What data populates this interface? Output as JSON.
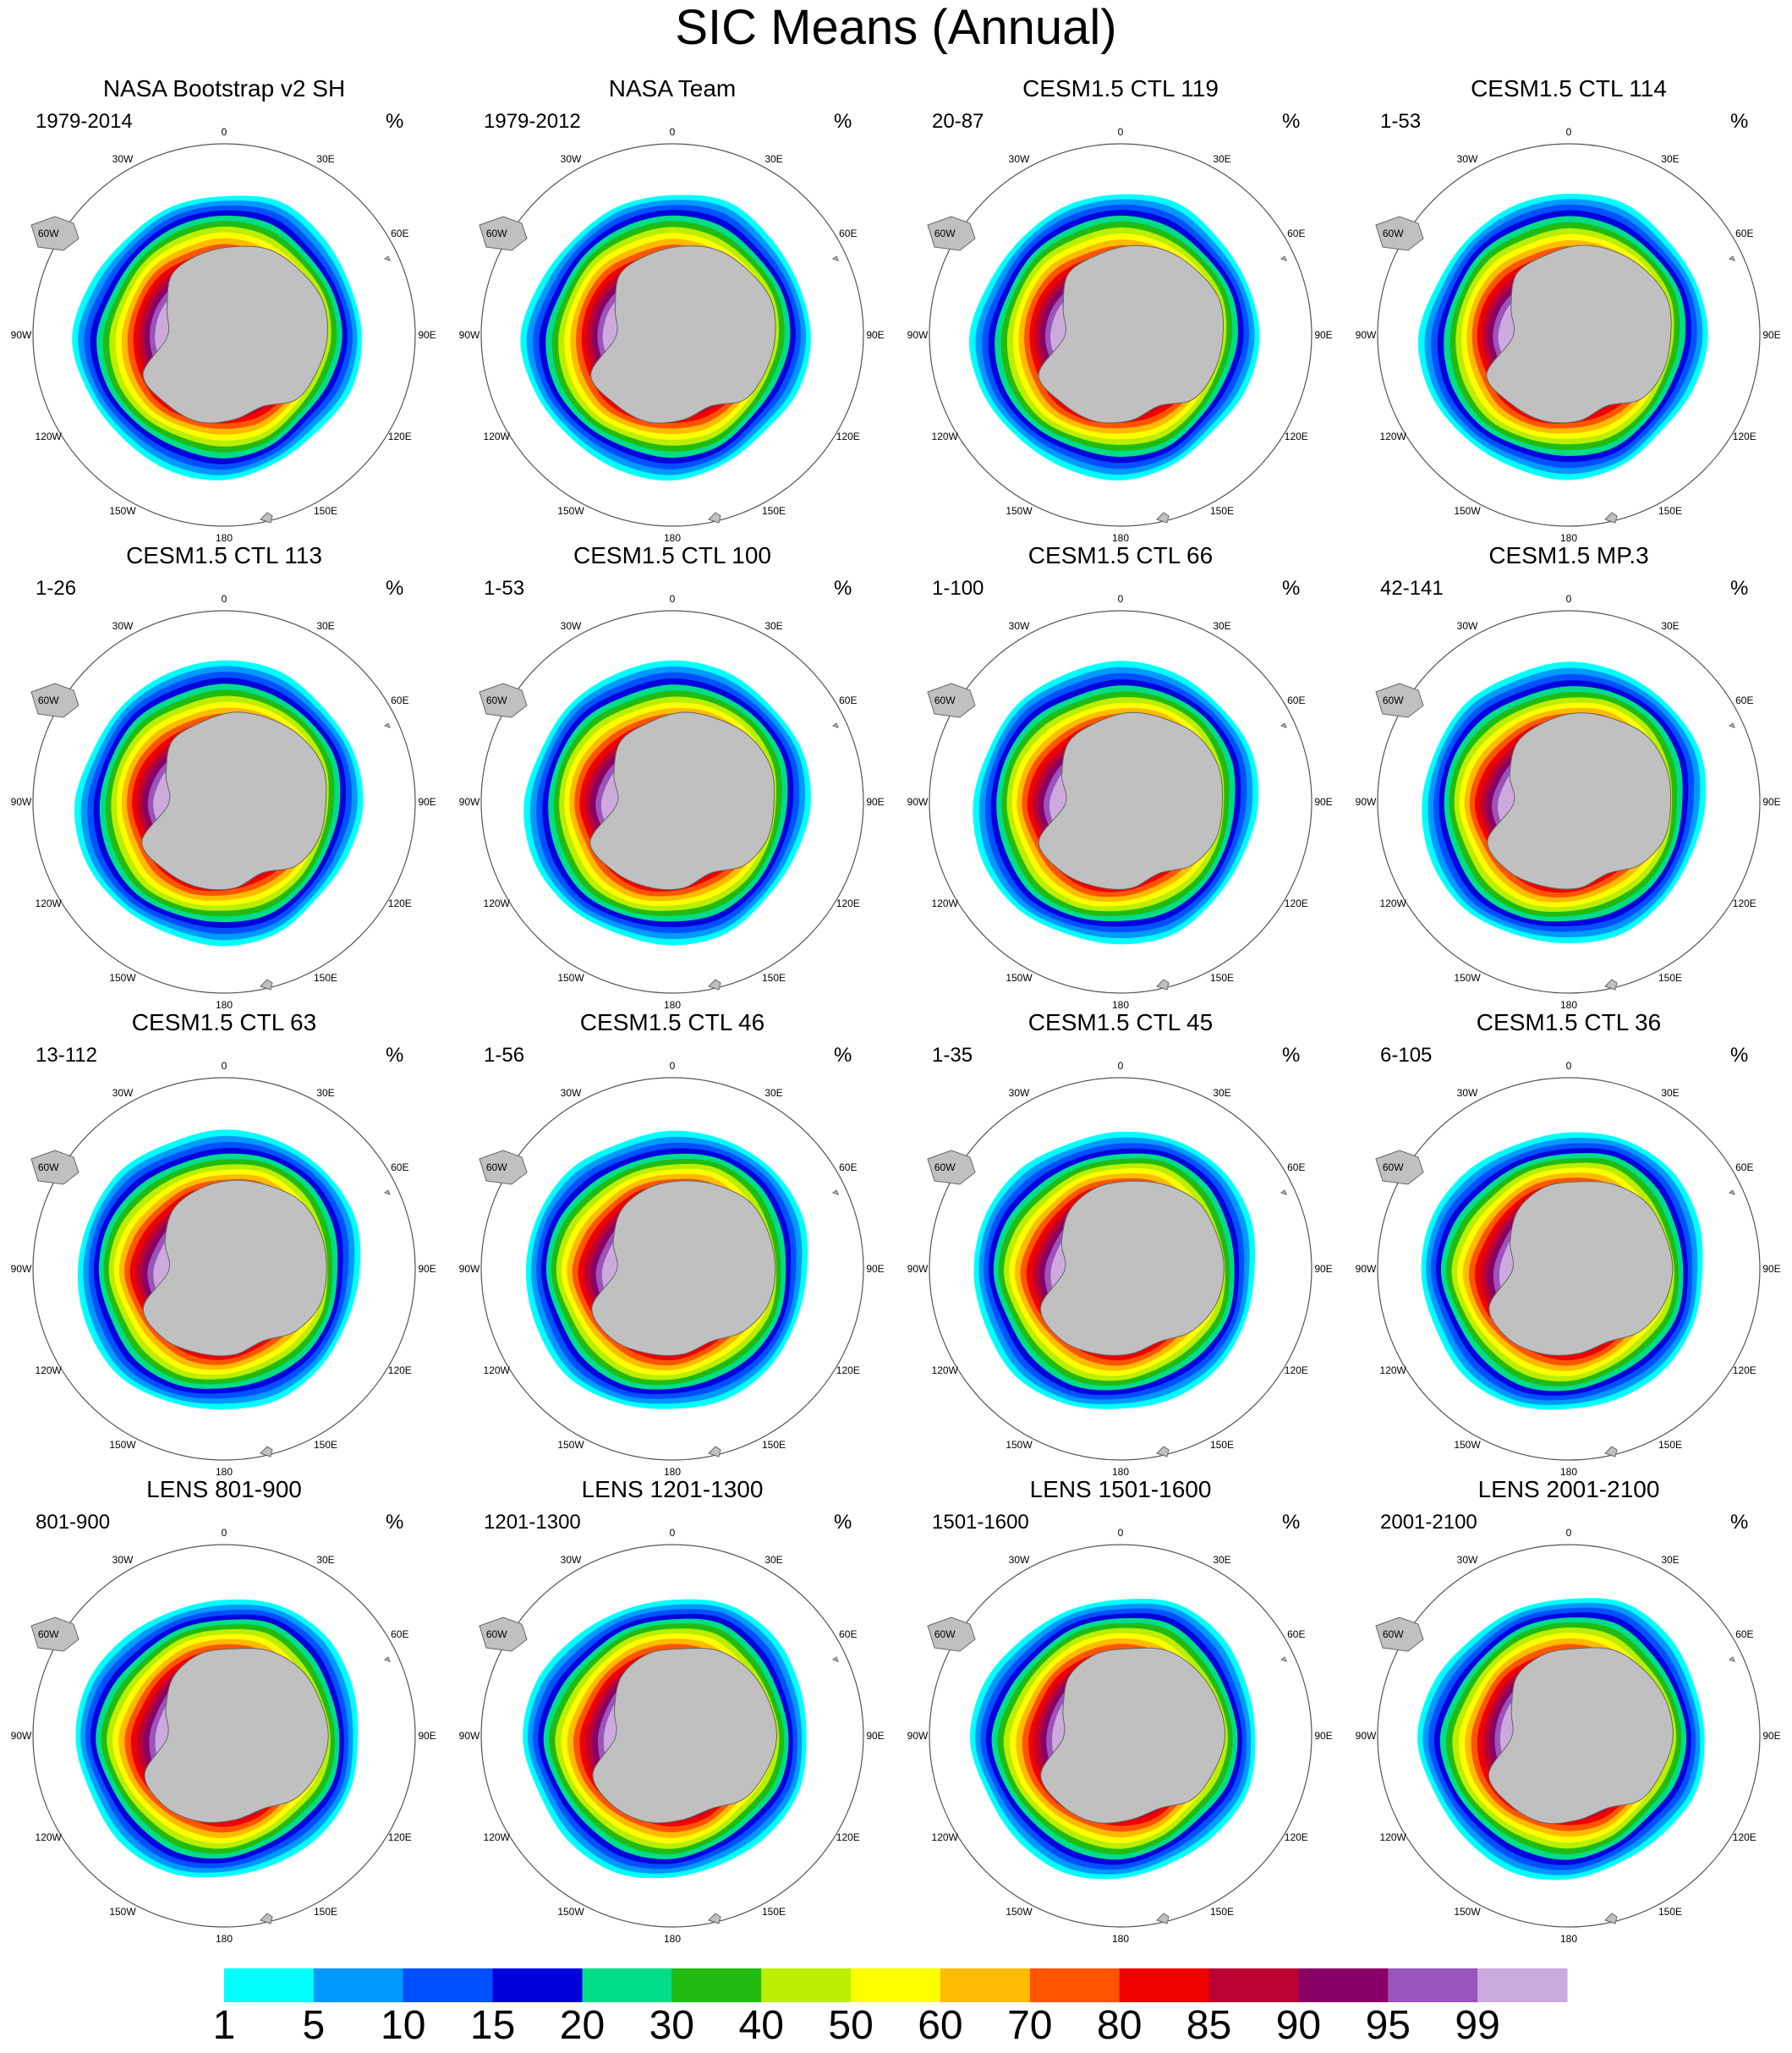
{
  "title": "SIC Means (Annual)",
  "unit_label": "%",
  "map_labels": {
    "lon_0": "0",
    "lon_30E": "30E",
    "lon_60E": "60E",
    "lon_90E": "90E",
    "lon_120E": "120E",
    "lon_150E": "150E",
    "lon_180": "180",
    "lon_150W": "150W",
    "lon_120W": "120W",
    "lon_90W": "90W",
    "lon_60W": "60W",
    "lon_30W": "30W"
  },
  "panels": [
    {
      "title": "NASA Bootstrap v2 SH",
      "period": "1979-2014"
    },
    {
      "title": "NASA Team",
      "period": "1979-2012"
    },
    {
      "title": "CESM1.5 CTL 119",
      "period": "20-87"
    },
    {
      "title": "CESM1.5 CTL 114",
      "period": "1-53"
    },
    {
      "title": "CESM1.5 CTL 113",
      "period": "1-26"
    },
    {
      "title": "CESM1.5 CTL 100",
      "period": "1-53"
    },
    {
      "title": "CESM1.5 CTL 66",
      "period": "1-100"
    },
    {
      "title": "CESM1.5 MP.3",
      "period": "42-141"
    },
    {
      "title": "CESM1.5 CTL 63",
      "period": "13-112"
    },
    {
      "title": "CESM1.5 CTL 46",
      "period": "1-56"
    },
    {
      "title": "CESM1.5 CTL 45",
      "period": "1-35"
    },
    {
      "title": "CESM1.5 CTL 36",
      "period": "6-105"
    },
    {
      "title": "LENS 801-900",
      "period": "801-900"
    },
    {
      "title": "LENS 1201-1300",
      "period": "1201-1300"
    },
    {
      "title": "LENS 1501-1600",
      "period": "1501-1600"
    },
    {
      "title": "LENS 2001-2100",
      "period": "2001-2100"
    }
  ],
  "colorbar": {
    "labels": [
      "1",
      "5",
      "10",
      "15",
      "20",
      "30",
      "40",
      "50",
      "60",
      "70",
      "80",
      "85",
      "90",
      "95",
      "99"
    ],
    "colors": [
      "#00ffff",
      "#0099ff",
      "#0050ff",
      "#0000dd",
      "#00dd88",
      "#22bb11",
      "#bbee00",
      "#ffff00",
      "#ffbb00",
      "#ff5500",
      "#ee0000",
      "#bb0033",
      "#880066",
      "#9955bb",
      "#ccaadd"
    ]
  },
  "colors": {
    "land": "#c0c0c0",
    "ice_edge": "#00ffff",
    "outline": "#888888"
  }
}
